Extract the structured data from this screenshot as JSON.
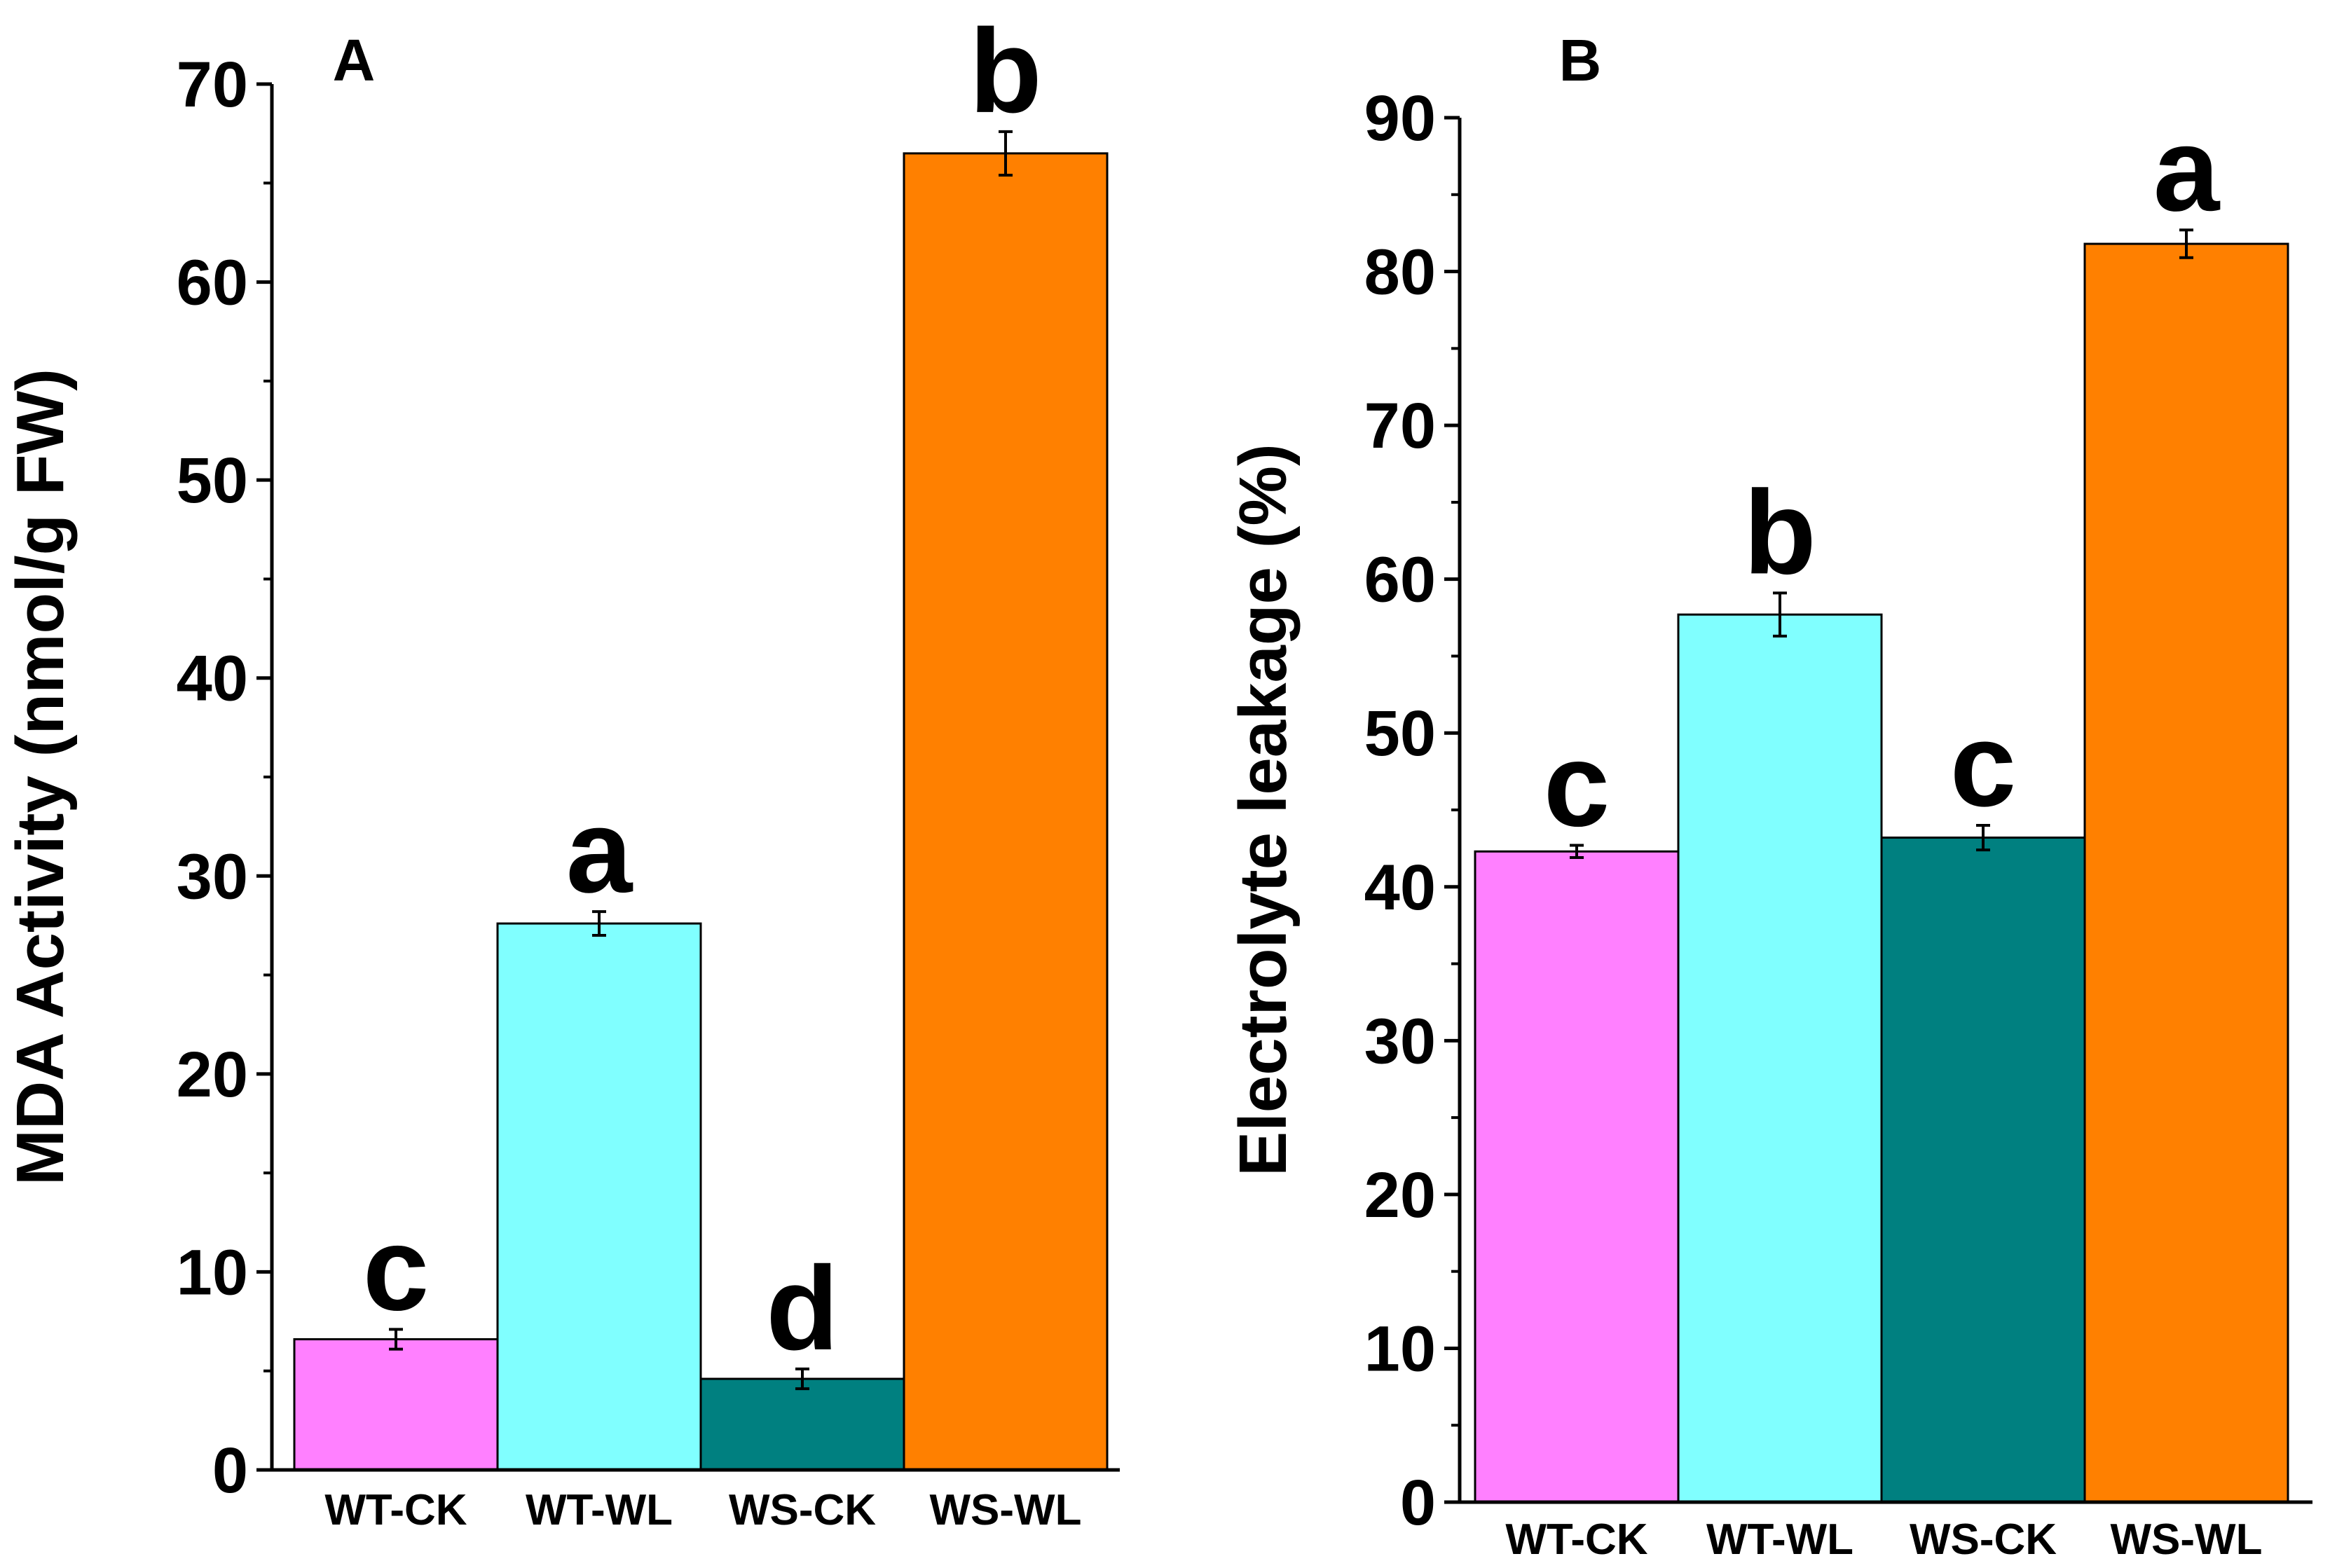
{
  "chart_data": [
    {
      "type": "bar",
      "panel_label": "A",
      "ylabel": "MDA Activity (nmol/g FW)",
      "xlabel": "",
      "ylim": [
        0,
        70
      ],
      "yticks": [
        "0",
        "10",
        "20",
        "30",
        "40",
        "50",
        "60",
        "70"
      ],
      "categories": [
        "WT-CK",
        "WT-WL",
        "WS-CK",
        "WS-WL"
      ],
      "values": [
        6.6,
        27.6,
        4.6,
        66.5
      ],
      "errors": [
        0.5,
        0.6,
        0.5,
        1.1
      ],
      "significance": [
        "c",
        "a",
        "d",
        "b"
      ],
      "colors": [
        "#ff80ff",
        "#80ffff",
        "#008080",
        "#ff8000"
      ]
    },
    {
      "type": "bar",
      "panel_label": "B",
      "ylabel": "Electrolyte leakage (%)",
      "xlabel": "",
      "ylim": [
        0,
        90
      ],
      "yticks": [
        "0",
        "10",
        "20",
        "30",
        "40",
        "50",
        "60",
        "70",
        "80",
        "90"
      ],
      "categories": [
        "WT-CK",
        "WT-WL",
        "WS-CK",
        "WS-WL"
      ],
      "values": [
        42.3,
        57.7,
        43.2,
        81.8
      ],
      "errors": [
        0.4,
        1.4,
        0.8,
        0.9
      ],
      "significance": [
        "c",
        "b",
        "c",
        "a"
      ],
      "colors": [
        "#ff80ff",
        "#80ffff",
        "#008080",
        "#ff8000"
      ]
    }
  ]
}
